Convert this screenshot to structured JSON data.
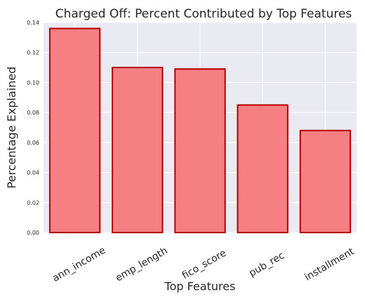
{
  "chart_data": {
    "type": "bar",
    "title": "Charged Off: Percent Contributed by Top Features",
    "xlabel": "Top Features",
    "ylabel": "Percentage Explained",
    "categories": [
      "ann_income",
      "emp_length",
      "fico_score",
      "pub_rec",
      "installment"
    ],
    "values": [
      0.136,
      0.11,
      0.109,
      0.085,
      0.068
    ],
    "ylim": [
      0,
      0.14
    ],
    "yticks": [
      "0.00",
      "0.02",
      "0.04",
      "0.06",
      "0.08",
      "0.10",
      "0.12",
      "0.14"
    ],
    "grid": true,
    "style": "seaborn-darkgrid",
    "colors": {
      "plot_background": "#eaeaf2",
      "bar_fill": "#f67f84",
      "bar_edge": "#b30000",
      "grid": "#ffffff"
    }
  }
}
